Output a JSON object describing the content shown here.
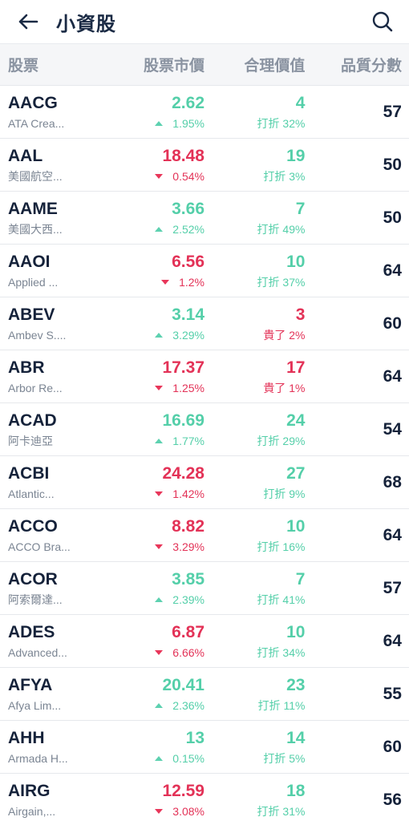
{
  "header": {
    "title": "小資股",
    "back_icon": "back-arrow-icon",
    "search_icon": "search-icon"
  },
  "columns": {
    "stock": "股票",
    "price": "股票市價",
    "fair": "合理價值",
    "score": "品質分數"
  },
  "colors": {
    "up": "#54cfa9",
    "down": "#e33257",
    "text": "#15223a",
    "muted": "#7b8593"
  },
  "rows": [
    {
      "ticker": "AACG",
      "name": "ATA Crea...",
      "price": "2.62",
      "change": "1.95%",
      "dir": "up",
      "fair": "4",
      "note": "打折 32%",
      "note_type": "discount",
      "score": "57"
    },
    {
      "ticker": "AAL",
      "name": "美國航空...",
      "price": "18.48",
      "change": "0.54%",
      "dir": "down",
      "fair": "19",
      "note": "打折 3%",
      "note_type": "discount",
      "score": "50"
    },
    {
      "ticker": "AAME",
      "name": "美國大西...",
      "price": "3.66",
      "change": "2.52%",
      "dir": "up",
      "fair": "7",
      "note": "打折 49%",
      "note_type": "discount",
      "score": "50"
    },
    {
      "ticker": "AAOI",
      "name": "Applied ...",
      "price": "6.56",
      "change": "1.2%",
      "dir": "down",
      "fair": "10",
      "note": "打折 37%",
      "note_type": "discount",
      "score": "64"
    },
    {
      "ticker": "ABEV",
      "name": "Ambev S....",
      "price": "3.14",
      "change": "3.29%",
      "dir": "up",
      "fair": "3",
      "note": "貴了 2%",
      "note_type": "premium",
      "score": "60"
    },
    {
      "ticker": "ABR",
      "name": "Arbor Re...",
      "price": "17.37",
      "change": "1.25%",
      "dir": "down",
      "fair": "17",
      "note": "貴了 1%",
      "note_type": "premium",
      "score": "64"
    },
    {
      "ticker": "ACAD",
      "name": "阿卡迪亞",
      "price": "16.69",
      "change": "1.77%",
      "dir": "up",
      "fair": "24",
      "note": "打折 29%",
      "note_type": "discount",
      "score": "54"
    },
    {
      "ticker": "ACBI",
      "name": "Atlantic...",
      "price": "24.28",
      "change": "1.42%",
      "dir": "down",
      "fair": "27",
      "note": "打折 9%",
      "note_type": "discount",
      "score": "68"
    },
    {
      "ticker": "ACCO",
      "name": "ACCO Bra...",
      "price": "8.82",
      "change": "3.29%",
      "dir": "down",
      "fair": "10",
      "note": "打折 16%",
      "note_type": "discount",
      "score": "64"
    },
    {
      "ticker": "ACOR",
      "name": "阿索爾達...",
      "price": "3.85",
      "change": "2.39%",
      "dir": "up",
      "fair": "7",
      "note": "打折 41%",
      "note_type": "discount",
      "score": "57"
    },
    {
      "ticker": "ADES",
      "name": "Advanced...",
      "price": "6.87",
      "change": "6.66%",
      "dir": "down",
      "fair": "10",
      "note": "打折 34%",
      "note_type": "discount",
      "score": "64"
    },
    {
      "ticker": "AFYA",
      "name": "Afya Lim...",
      "price": "20.41",
      "change": "2.36%",
      "dir": "up",
      "fair": "23",
      "note": "打折 11%",
      "note_type": "discount",
      "score": "55"
    },
    {
      "ticker": "AHH",
      "name": "Armada H...",
      "price": "13",
      "change": "0.15%",
      "dir": "up",
      "fair": "14",
      "note": "打折 5%",
      "note_type": "discount",
      "score": "60"
    },
    {
      "ticker": "AIRG",
      "name": "Airgain,...",
      "price": "12.59",
      "change": "3.08%",
      "dir": "down",
      "fair": "18",
      "note": "打折 31%",
      "note_type": "discount",
      "score": "56"
    }
  ]
}
